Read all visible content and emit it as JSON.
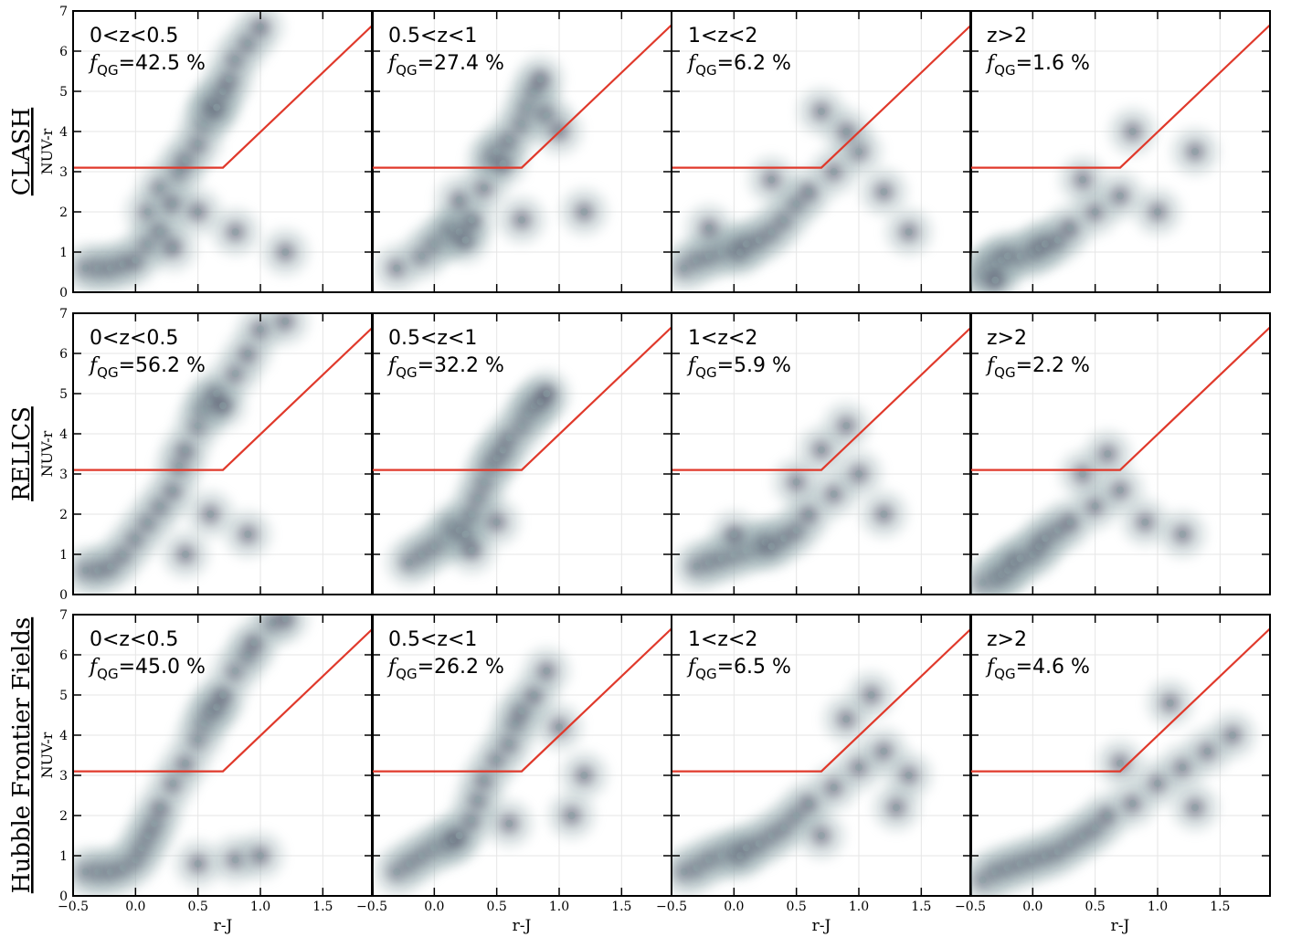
{
  "row_labels": [
    "CLASH",
    "RELICS",
    "Hubble Frontier Fields"
  ],
  "chart_data": [
    {
      "type": "scatter",
      "title": "0<z<0.5",
      "f_symbol": "f",
      "f_subscript": "QG",
      "f_text": "=42.5 %",
      "ylabel": "NUV-r",
      "xlim": [
        -0.5,
        1.9
      ],
      "ylim": [
        0,
        7
      ],
      "xticks": [
        -0.5,
        0,
        0.5,
        1,
        1.5
      ],
      "yticks": [
        0,
        1,
        2,
        3,
        4,
        5,
        6,
        7
      ],
      "show_xticklabels": false,
      "show_yticklabels": true,
      "grid": true,
      "color": "#35324e",
      "x": [
        -0.4,
        -0.3,
        -0.2,
        -0.1,
        0.0,
        0.1,
        0.1,
        0.2,
        0.2,
        0.3,
        0.35,
        0.4,
        0.5,
        0.55,
        0.6,
        0.62,
        0.65,
        0.7,
        0.75,
        0.8,
        0.9,
        1.0,
        0.5,
        0.8,
        1.2,
        0.3
      ],
      "y": [
        0.6,
        0.6,
        0.6,
        0.7,
        0.8,
        1.2,
        2.0,
        1.5,
        2.6,
        2.2,
        3.0,
        3.3,
        3.7,
        4.2,
        4.5,
        4.7,
        4.6,
        5.0,
        5.3,
        5.8,
        6.2,
        6.6,
        2.0,
        1.5,
        1.0,
        1.1
      ],
      "line": {
        "x": [
          -0.5,
          0.7,
          1.9
        ],
        "y": [
          3.1,
          3.1,
          6.65
        ],
        "color": "#e0392b"
      }
    },
    {
      "type": "scatter",
      "title": "0.5<z<1",
      "f_symbol": "f",
      "f_subscript": "QG",
      "f_text": "=27.4 %",
      "xlim": [
        -0.5,
        1.9
      ],
      "ylim": [
        0,
        7
      ],
      "xticks": [
        -0.5,
        0,
        0.5,
        1,
        1.5
      ],
      "yticks": [
        0,
        1,
        2,
        3,
        4,
        5,
        6,
        7
      ],
      "show_xticklabels": false,
      "show_yticklabels": false,
      "grid": true,
      "color": "#35324e",
      "x": [
        -0.3,
        -0.1,
        0.0,
        0.1,
        0.15,
        0.2,
        0.25,
        0.3,
        0.2,
        0.4,
        0.45,
        0.5,
        0.55,
        0.6,
        0.7,
        0.75,
        0.8,
        0.85,
        0.9,
        1.0,
        0.7,
        1.2
      ],
      "y": [
        0.6,
        0.9,
        1.2,
        1.4,
        1.6,
        1.5,
        1.3,
        1.8,
        2.3,
        2.6,
        3.3,
        3.5,
        3.2,
        3.8,
        4.2,
        4.6,
        5.0,
        5.3,
        4.4,
        4.0,
        1.8,
        2.0
      ],
      "line": {
        "x": [
          -0.5,
          0.7,
          1.9
        ],
        "y": [
          3.1,
          3.1,
          6.65
        ],
        "color": "#e0392b"
      }
    },
    {
      "type": "scatter",
      "title": "1<z<2",
      "f_symbol": "f",
      "f_subscript": "QG",
      "f_text": "=6.2 %",
      "xlim": [
        -0.5,
        1.9
      ],
      "ylim": [
        0,
        7
      ],
      "xticks": [
        -0.5,
        0,
        0.5,
        1,
        1.5
      ],
      "yticks": [
        0,
        1,
        2,
        3,
        4,
        5,
        6,
        7
      ],
      "show_xticklabels": false,
      "show_yticklabels": false,
      "grid": true,
      "color": "#35324e",
      "x": [
        -0.4,
        -0.3,
        -0.2,
        -0.1,
        0.0,
        0.05,
        0.1,
        0.2,
        0.3,
        0.4,
        0.5,
        0.6,
        0.8,
        1.0,
        1.2,
        0.7,
        0.9,
        -0.2,
        0.3,
        1.4
      ],
      "y": [
        0.6,
        0.8,
        0.9,
        1.0,
        1.1,
        1.0,
        1.2,
        1.3,
        1.5,
        1.8,
        2.2,
        2.5,
        3.0,
        3.5,
        2.5,
        4.5,
        4.0,
        1.6,
        2.8,
        1.5
      ],
      "line": {
        "x": [
          -0.5,
          0.7,
          1.9
        ],
        "y": [
          3.1,
          3.1,
          6.65
        ],
        "color": "#e0392b"
      }
    },
    {
      "type": "scatter",
      "title": "z>2",
      "f_symbol": "f",
      "f_subscript": "QG",
      "f_text": "=1.6 %",
      "xlim": [
        -0.5,
        1.9
      ],
      "ylim": [
        0,
        7
      ],
      "xticks": [
        -0.5,
        0,
        0.5,
        1,
        1.5
      ],
      "yticks": [
        0,
        1,
        2,
        3,
        4,
        5,
        6,
        7
      ],
      "show_xticklabels": false,
      "show_yticklabels": false,
      "grid": true,
      "color": "#35324e",
      "x": [
        -0.4,
        -0.35,
        -0.3,
        -0.25,
        -0.2,
        -0.1,
        0.0,
        0.05,
        0.1,
        0.2,
        0.3,
        0.5,
        0.7,
        1.0,
        1.3,
        0.4,
        0.8,
        -0.3
      ],
      "y": [
        0.4,
        0.6,
        0.7,
        0.8,
        0.9,
        0.9,
        1.0,
        1.1,
        1.2,
        1.3,
        1.6,
        2.0,
        2.4,
        2.0,
        3.5,
        2.8,
        4.0,
        0.3
      ],
      "line": {
        "x": [
          -0.5,
          0.7,
          1.9
        ],
        "y": [
          3.1,
          3.1,
          6.65
        ],
        "color": "#e0392b"
      }
    },
    {
      "type": "scatter",
      "title": "0<z<0.5",
      "f_symbol": "f",
      "f_subscript": "QG",
      "f_text": "=56.2 %",
      "ylabel": "NUV-r",
      "xlim": [
        -0.5,
        1.9
      ],
      "ylim": [
        0,
        7
      ],
      "xticks": [
        -0.5,
        0,
        0.5,
        1,
        1.5
      ],
      "yticks": [
        0,
        1,
        2,
        3,
        4,
        5,
        6,
        7
      ],
      "show_xticklabels": false,
      "show_yticklabels": true,
      "grid": true,
      "color": "#35324e",
      "x": [
        -0.4,
        -0.3,
        -0.2,
        -0.1,
        0.0,
        0.1,
        0.2,
        0.3,
        0.35,
        0.4,
        0.5,
        0.55,
        0.6,
        0.65,
        0.7,
        0.8,
        0.9,
        1.0,
        1.2,
        0.6,
        0.9,
        0.4
      ],
      "y": [
        0.6,
        0.6,
        0.7,
        1.0,
        1.4,
        1.8,
        2.2,
        2.6,
        3.2,
        3.6,
        4.2,
        4.6,
        4.8,
        5.0,
        4.7,
        5.5,
        6.0,
        6.6,
        6.8,
        2.0,
        1.5,
        1.0
      ],
      "line": {
        "x": [
          -0.5,
          0.7,
          1.9
        ],
        "y": [
          3.1,
          3.1,
          6.65
        ],
        "color": "#e0392b"
      }
    },
    {
      "type": "scatter",
      "title": "0.5<z<1",
      "f_symbol": "f",
      "f_subscript": "QG",
      "f_text": "=32.2 %",
      "xlim": [
        -0.5,
        1.9
      ],
      "ylim": [
        0,
        7
      ],
      "xticks": [
        -0.5,
        0,
        0.5,
        1,
        1.5
      ],
      "yticks": [
        0,
        1,
        2,
        3,
        4,
        5,
        6,
        7
      ],
      "show_xticklabels": false,
      "show_yticklabels": false,
      "grid": true,
      "color": "#35324e",
      "x": [
        -0.2,
        -0.1,
        0.0,
        0.1,
        0.15,
        0.2,
        0.25,
        0.3,
        0.35,
        0.4,
        0.45,
        0.5,
        0.55,
        0.6,
        0.7,
        0.75,
        0.8,
        0.85,
        0.9,
        0.3,
        0.5
      ],
      "y": [
        0.8,
        1.0,
        1.2,
        1.4,
        1.7,
        1.6,
        1.5,
        2.0,
        2.4,
        2.8,
        3.2,
        3.4,
        3.6,
        3.9,
        4.2,
        4.5,
        4.7,
        4.8,
        5.0,
        1.1,
        1.8
      ],
      "line": {
        "x": [
          -0.5,
          0.7,
          1.9
        ],
        "y": [
          3.1,
          3.1,
          6.65
        ],
        "color": "#e0392b"
      }
    },
    {
      "type": "scatter",
      "title": "1<z<2",
      "f_symbol": "f",
      "f_subscript": "QG",
      "f_text": "=5.9 %",
      "xlim": [
        -0.5,
        1.9
      ],
      "ylim": [
        0,
        7
      ],
      "xticks": [
        -0.5,
        0,
        0.5,
        1,
        1.5
      ],
      "yticks": [
        0,
        1,
        2,
        3,
        4,
        5,
        6,
        7
      ],
      "show_xticklabels": false,
      "show_yticklabels": false,
      "grid": true,
      "color": "#35324e",
      "x": [
        -0.3,
        -0.2,
        -0.1,
        0.0,
        0.1,
        0.2,
        0.25,
        0.3,
        0.4,
        0.5,
        0.6,
        0.8,
        1.0,
        0.7,
        0.9,
        1.2,
        0.0,
        0.5
      ],
      "y": [
        0.7,
        0.8,
        0.9,
        1.0,
        1.1,
        1.2,
        1.3,
        1.2,
        1.4,
        1.6,
        2.0,
        2.5,
        3.0,
        3.6,
        4.2,
        2.0,
        1.5,
        2.8
      ],
      "line": {
        "x": [
          -0.5,
          0.7,
          1.9
        ],
        "y": [
          3.1,
          3.1,
          6.65
        ],
        "color": "#e0392b"
      }
    },
    {
      "type": "scatter",
      "title": "z>2",
      "f_symbol": "f",
      "f_subscript": "QG",
      "f_text": "=2.2 %",
      "xlim": [
        -0.5,
        1.9
      ],
      "ylim": [
        0,
        7
      ],
      "xticks": [
        -0.5,
        0,
        0.5,
        1,
        1.5
      ],
      "yticks": [
        0,
        1,
        2,
        3,
        4,
        5,
        6,
        7
      ],
      "show_xticklabels": false,
      "show_yticklabels": false,
      "grid": true,
      "color": "#35324e",
      "x": [
        -0.4,
        -0.3,
        -0.25,
        -0.2,
        -0.15,
        -0.1,
        0.0,
        0.05,
        0.1,
        0.2,
        0.3,
        0.5,
        0.7,
        0.9,
        1.2,
        0.4,
        0.6
      ],
      "y": [
        0.3,
        0.4,
        0.5,
        0.6,
        0.8,
        0.9,
        1.0,
        1.2,
        1.4,
        1.6,
        1.8,
        2.2,
        2.6,
        1.8,
        1.5,
        3.0,
        3.5
      ],
      "line": {
        "x": [
          -0.5,
          0.7,
          1.9
        ],
        "y": [
          3.1,
          3.1,
          6.65
        ],
        "color": "#e0392b"
      }
    },
    {
      "type": "scatter",
      "title": "0<z<0.5",
      "f_symbol": "f",
      "f_subscript": "QG",
      "f_text": "=45.0 %",
      "ylabel": "NUV-r",
      "xlabel": "r-J",
      "xlim": [
        -0.5,
        1.9
      ],
      "ylim": [
        0,
        7
      ],
      "xticks": [
        {
          "value": -0.5,
          "label": "−0.5"
        },
        {
          "value": 0,
          "label": "0.0"
        },
        0.5,
        {
          "value": 1,
          "label": "1.0"
        },
        1.5
      ],
      "yticks": [
        0,
        1,
        2,
        3,
        4,
        5,
        6,
        7
      ],
      "show_xticklabels": true,
      "show_yticklabels": true,
      "grid": true,
      "color": "#35324e",
      "x": [
        -0.4,
        -0.3,
        -0.2,
        -0.1,
        0.0,
        0.05,
        0.1,
        0.15,
        0.2,
        0.3,
        0.4,
        0.5,
        0.55,
        0.6,
        0.65,
        0.7,
        0.8,
        0.9,
        0.95,
        1.1,
        1.2,
        0.5,
        0.8,
        1.0
      ],
      "y": [
        0.6,
        0.6,
        0.6,
        0.7,
        0.9,
        1.2,
        1.5,
        1.8,
        2.2,
        2.8,
        3.3,
        3.9,
        4.3,
        4.6,
        4.7,
        5.0,
        5.6,
        6.0,
        6.3,
        6.8,
        6.9,
        0.8,
        0.9,
        1.0
      ],
      "line": {
        "x": [
          -0.5,
          0.7,
          1.9
        ],
        "y": [
          3.1,
          3.1,
          6.65
        ],
        "color": "#e0392b"
      }
    },
    {
      "type": "scatter",
      "title": "0.5<z<1",
      "f_symbol": "f",
      "f_subscript": "QG",
      "f_text": "=26.2 %",
      "xlabel": "r-J",
      "xlim": [
        -0.5,
        1.9
      ],
      "ylim": [
        0,
        7
      ],
      "xticks": [
        {
          "value": -0.5,
          "label": "−0.5"
        },
        {
          "value": 0,
          "label": "0.0"
        },
        0.5,
        {
          "value": 1,
          "label": "1.0"
        },
        1.5
      ],
      "yticks": [
        0,
        1,
        2,
        3,
        4,
        5,
        6,
        7
      ],
      "show_xticklabels": true,
      "show_yticklabels": false,
      "grid": true,
      "color": "#35324e",
      "x": [
        -0.3,
        -0.2,
        -0.1,
        0.0,
        0.1,
        0.15,
        0.2,
        0.3,
        0.35,
        0.4,
        0.5,
        0.6,
        0.65,
        0.7,
        0.8,
        0.9,
        1.0,
        1.2,
        0.6,
        1.1
      ],
      "y": [
        0.6,
        0.8,
        1.0,
        1.2,
        1.3,
        1.4,
        1.5,
        1.9,
        2.4,
        2.9,
        3.4,
        3.8,
        4.3,
        4.6,
        5.0,
        5.6,
        4.2,
        3.0,
        1.8,
        2.0
      ],
      "line": {
        "x": [
          -0.5,
          0.7,
          1.9
        ],
        "y": [
          3.1,
          3.1,
          6.65
        ],
        "color": "#e0392b"
      }
    },
    {
      "type": "scatter",
      "title": "1<z<2",
      "f_symbol": "f",
      "f_subscript": "QG",
      "f_text": "=6.5 %",
      "xlabel": "r-J",
      "xlim": [
        -0.5,
        1.9
      ],
      "ylim": [
        0,
        7
      ],
      "xticks": [
        {
          "value": -0.5,
          "label": "−0.5"
        },
        {
          "value": 0,
          "label": "0.0"
        },
        0.5,
        {
          "value": 1,
          "label": "1.0"
        },
        1.5
      ],
      "yticks": [
        0,
        1,
        2,
        3,
        4,
        5,
        6,
        7
      ],
      "show_xticklabels": true,
      "show_yticklabels": false,
      "grid": true,
      "color": "#35324e",
      "x": [
        -0.4,
        -0.3,
        -0.2,
        -0.1,
        0.0,
        0.05,
        0.1,
        0.2,
        0.3,
        0.4,
        0.5,
        0.6,
        0.8,
        1.0,
        1.2,
        1.4,
        0.9,
        1.1,
        0.7,
        1.3
      ],
      "y": [
        0.6,
        0.7,
        0.9,
        1.0,
        1.1,
        1.0,
        1.2,
        1.3,
        1.5,
        1.7,
        2.0,
        2.3,
        2.7,
        3.2,
        3.6,
        3.0,
        4.4,
        5.0,
        1.5,
        2.2
      ],
      "line": {
        "x": [
          -0.5,
          0.7,
          1.9
        ],
        "y": [
          3.1,
          3.1,
          6.65
        ],
        "color": "#e0392b"
      }
    },
    {
      "type": "scatter",
      "title": "z>2",
      "f_symbol": "f",
      "f_subscript": "QG",
      "f_text": "=4.6 %",
      "xlabel": "r-J",
      "xlim": [
        -0.5,
        1.9
      ],
      "ylim": [
        0,
        7
      ],
      "xticks": [
        {
          "value": -0.5,
          "label": "−0.5"
        },
        {
          "value": 0,
          "label": "0.0"
        },
        0.5,
        {
          "value": 1,
          "label": "1.0"
        },
        1.5
      ],
      "yticks": [
        0,
        1,
        2,
        3,
        4,
        5,
        6,
        7
      ],
      "show_xticklabels": true,
      "show_yticklabels": false,
      "grid": true,
      "color": "#35324e",
      "x": [
        -0.4,
        -0.3,
        -0.2,
        -0.1,
        0.0,
        0.1,
        0.2,
        0.3,
        0.4,
        0.5,
        0.6,
        0.8,
        1.0,
        1.2,
        1.4,
        1.6,
        1.1,
        1.3,
        0.7
      ],
      "y": [
        0.4,
        0.6,
        0.7,
        0.8,
        0.9,
        1.0,
        1.1,
        1.3,
        1.5,
        1.7,
        2.0,
        2.3,
        2.8,
        3.2,
        3.6,
        4.0,
        4.8,
        2.2,
        3.3
      ],
      "line": {
        "x": [
          -0.5,
          0.7,
          1.9
        ],
        "y": [
          3.1,
          3.1,
          6.65
        ],
        "color": "#e0392b"
      }
    }
  ]
}
